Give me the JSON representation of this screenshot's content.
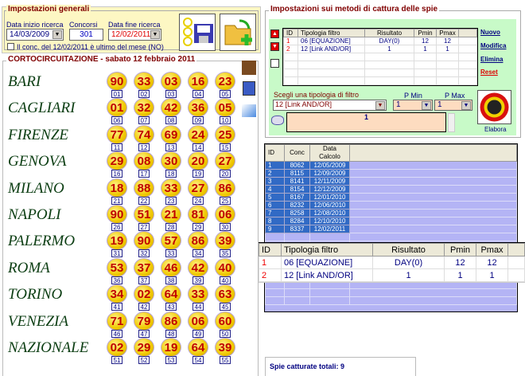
{
  "general": {
    "title": "Impostazioni generali",
    "start_label": "Data inizio ricerca",
    "start_value": "14/03/2009",
    "concorsi_label": "Concorsi",
    "concorsi_value": "301",
    "end_label": "Data fine ricerca",
    "end_value": "12/02/2011",
    "checkbox_label": "Il conc. del 12/02/2011 è ultimo del mese (NO)",
    "checkbox_checked": false,
    "save_icon": "save-floppy-icon",
    "add_icon": "folder-add-icon"
  },
  "draw": {
    "title": "CORTOCIRCUITAZIONE - sabato 12 febbraio 2011",
    "wheels": [
      {
        "name": "BARI",
        "numbers": [
          "90",
          "33",
          "03",
          "16",
          "23"
        ]
      },
      {
        "name": "CAGLIARI",
        "numbers": [
          "01",
          "32",
          "42",
          "36",
          "05"
        ]
      },
      {
        "name": "FIRENZE",
        "numbers": [
          "77",
          "74",
          "69",
          "24",
          "25"
        ]
      },
      {
        "name": "GENOVA",
        "numbers": [
          "29",
          "08",
          "30",
          "20",
          "27"
        ]
      },
      {
        "name": "MILANO",
        "numbers": [
          "18",
          "88",
          "33",
          "27",
          "86"
        ]
      },
      {
        "name": "NAPOLI",
        "numbers": [
          "90",
          "51",
          "21",
          "81",
          "06"
        ]
      },
      {
        "name": "PALERMO",
        "numbers": [
          "19",
          "90",
          "57",
          "86",
          "39"
        ]
      },
      {
        "name": "ROMA",
        "numbers": [
          "53",
          "37",
          "46",
          "42",
          "40"
        ]
      },
      {
        "name": "TORINO",
        "numbers": [
          "34",
          "02",
          "64",
          "33",
          "63"
        ]
      },
      {
        "name": "VENEZIA",
        "numbers": [
          "71",
          "79",
          "86",
          "06",
          "60"
        ]
      },
      {
        "name": "NAZIONALE",
        "numbers": [
          "02",
          "29",
          "19",
          "64",
          "39"
        ]
      }
    ]
  },
  "methods": {
    "title": "Impostazioni sui metodi di cattura delle spie",
    "columns": [
      "ID",
      "Tipologia filtro",
      "Risultato",
      "Pmin",
      "Pmax"
    ],
    "rows": [
      [
        "1",
        "06 [EQUAZIONE]",
        "DAY(0)",
        "12",
        "12"
      ],
      [
        "2",
        "12 [Link AND/OR]",
        "1",
        "1",
        "1"
      ]
    ],
    "links": {
      "new": "Nuovo",
      "edit": "Modifica",
      "delete": "Elimina",
      "reset": "Reset"
    },
    "filter_label": "Scegli una tipologia di filtro",
    "filter_value": "12 [Link AND/OR]",
    "pmin_label": "P Min",
    "pmin_value": "1",
    "pmax_label": "P Max",
    "pmax_value": "1",
    "param_value": "1",
    "run_label": "Elabora"
  },
  "results": {
    "columns": [
      "ID",
      "Conc",
      "Data Calcolo"
    ],
    "rows": [
      [
        "1",
        "8062",
        "12/05/2009"
      ],
      [
        "2",
        "8115",
        "12/09/2009"
      ],
      [
        "3",
        "8141",
        "12/11/2009"
      ],
      [
        "4",
        "8154",
        "12/12/2009"
      ],
      [
        "5",
        "8167",
        "12/01/2010"
      ],
      [
        "6",
        "8232",
        "12/06/2010"
      ],
      [
        "7",
        "8258",
        "12/08/2010"
      ],
      [
        "8",
        "8284",
        "12/10/2010"
      ],
      [
        "9",
        "8337",
        "12/02/2011"
      ]
    ],
    "total_label": "Spie catturate totali: 9"
  }
}
